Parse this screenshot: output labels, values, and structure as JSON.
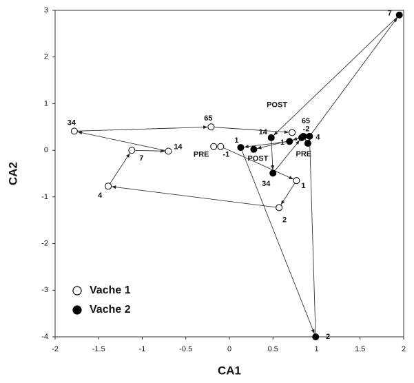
{
  "chart_data": {
    "type": "scatter",
    "xlabel": "CA1",
    "ylabel": "CA2",
    "xlim": [
      -2,
      2
    ],
    "ylim": [
      -4,
      3
    ],
    "xticks": [
      -2,
      -1.5,
      -1,
      -0.5,
      0,
      0.5,
      1,
      1.5,
      2
    ],
    "yticks": [
      -4,
      -3,
      -2,
      -1,
      0,
      1,
      2,
      3
    ],
    "series": [
      {
        "name": "Vache 1",
        "color": "#ffffff",
        "labels": [
          "PRE",
          "-1",
          "1",
          "2",
          "4",
          "7",
          "14",
          "34",
          "65",
          "POST"
        ],
        "x": [
          -0.18,
          -0.1,
          0.77,
          0.57,
          -1.39,
          -1.12,
          -0.7,
          -1.78,
          -0.21,
          0.72
        ],
        "y": [
          0.08,
          0.08,
          -0.65,
          -1.23,
          -0.77,
          0.0,
          -0.02,
          0.41,
          0.5,
          0.38
        ]
      },
      {
        "name": "Vache 2",
        "color": "#000000",
        "labels": [
          "PRE",
          "-2",
          "-1",
          "1",
          "2",
          "4",
          "7",
          "14",
          "34",
          "65",
          "POST"
        ],
        "x": [
          0.9,
          0.85,
          0.69,
          0.13,
          0.99,
          0.92,
          1.95,
          0.48,
          0.5,
          0.83,
          0.28
        ],
        "y": [
          0.15,
          0.3,
          0.19,
          0.06,
          -4.0,
          0.3,
          2.9,
          0.27,
          -0.49,
          0.27,
          0.02
        ]
      }
    ]
  }
}
